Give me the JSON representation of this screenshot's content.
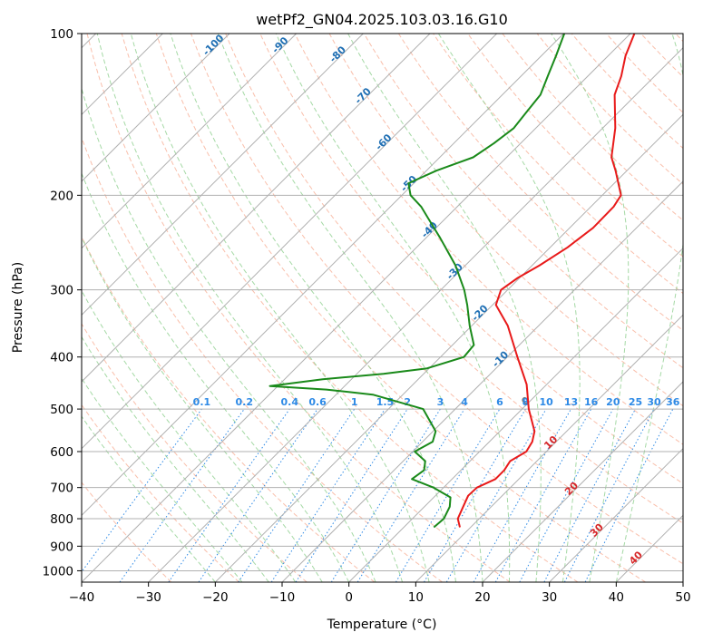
{
  "chart_data": {
    "type": "line",
    "subtype": "skew-T log-P diagram",
    "title": "wetPf2_GN04.2025.103.03.16.G10",
    "xlabel": "Temperature (°C)",
    "ylabel": "Pressure (hPa)",
    "xlim": [
      -40,
      50
    ],
    "ylim": [
      1050,
      100
    ],
    "y_scale": "log",
    "grid": true,
    "x_ticks": [
      -40,
      -30,
      -20,
      -10,
      0,
      10,
      20,
      30,
      40,
      50
    ],
    "y_ticks": [
      100,
      200,
      300,
      400,
      500,
      600,
      700,
      800,
      900,
      1000
    ],
    "isotherm_labels": [
      "-100",
      "-90",
      "-80",
      "-70",
      "-60",
      "-50",
      "-40",
      "-30",
      "-20",
      "-10",
      "0",
      "10",
      "20",
      "30",
      "40"
    ],
    "mixing_ratio_labels": [
      "0.1",
      "0.2",
      "0.4",
      "0.6",
      "1",
      "1.5",
      "2",
      "3",
      "4",
      "6",
      "8",
      "10",
      "13",
      "16",
      "20",
      "25",
      "30",
      "36"
    ],
    "series": [
      {
        "color": "#e81a1a",
        "points": [
          {
            "p": 830,
            "t": 8.4
          },
          {
            "p": 800,
            "t": 6.8
          },
          {
            "p": 760,
            "t": 5.8
          },
          {
            "p": 725,
            "t": 4.9
          },
          {
            "p": 700,
            "t": 5.0
          },
          {
            "p": 675,
            "t": 6.5
          },
          {
            "p": 650,
            "t": 6.5
          },
          {
            "p": 625,
            "t": 6.0
          },
          {
            "p": 600,
            "t": 7.0
          },
          {
            "p": 575,
            "t": 6.4
          },
          {
            "p": 550,
            "t": 5.2
          },
          {
            "p": 500,
            "t": 1.0
          },
          {
            "p": 450,
            "t": -3.0
          },
          {
            "p": 400,
            "t": -8.5
          },
          {
            "p": 350,
            "t": -14.6
          },
          {
            "p": 320,
            "t": -19.5
          },
          {
            "p": 300,
            "t": -21.0
          },
          {
            "p": 285,
            "t": -20.3
          },
          {
            "p": 270,
            "t": -18.9
          },
          {
            "p": 250,
            "t": -17.4
          },
          {
            "p": 230,
            "t": -16.5
          },
          {
            "p": 210,
            "t": -16.6
          },
          {
            "p": 200,
            "t": -17.2
          },
          {
            "p": 180,
            "t": -21.7
          },
          {
            "p": 170,
            "t": -24.3
          },
          {
            "p": 150,
            "t": -28.1
          },
          {
            "p": 130,
            "t": -33.2
          },
          {
            "p": 120,
            "t": -35.0
          },
          {
            "p": 110,
            "t": -37.4
          },
          {
            "p": 100,
            "t": -39.4
          }
        ]
      },
      {
        "color": "#1a8a1a",
        "points": [
          {
            "p": 830,
            "t": 4.5
          },
          {
            "p": 800,
            "t": 4.7
          },
          {
            "p": 760,
            "t": 3.8
          },
          {
            "p": 730,
            "t": 2.5
          },
          {
            "p": 700,
            "t": -1.5
          },
          {
            "p": 675,
            "t": -6.0
          },
          {
            "p": 650,
            "t": -5.5
          },
          {
            "p": 625,
            "t": -6.7
          },
          {
            "p": 600,
            "t": -9.7
          },
          {
            "p": 575,
            "t": -8.5
          },
          {
            "p": 550,
            "t": -9.6
          },
          {
            "p": 500,
            "t": -14.8
          },
          {
            "p": 470,
            "t": -24.5
          },
          {
            "p": 460,
            "t": -32.2
          },
          {
            "p": 453,
            "t": -41.2
          },
          {
            "p": 440,
            "t": -34.3
          },
          {
            "p": 430,
            "t": -26.0
          },
          {
            "p": 420,
            "t": -20.3
          },
          {
            "p": 400,
            "t": -16.5
          },
          {
            "p": 380,
            "t": -16.8
          },
          {
            "p": 350,
            "t": -20.3
          },
          {
            "p": 320,
            "t": -23.8
          },
          {
            "p": 300,
            "t": -26.5
          },
          {
            "p": 270,
            "t": -31.5
          },
          {
            "p": 240,
            "t": -37.9
          },
          {
            "p": 220,
            "t": -42.8
          },
          {
            "p": 210,
            "t": -45.4
          },
          {
            "p": 200,
            "t": -48.7
          },
          {
            "p": 190,
            "t": -50.8
          },
          {
            "p": 180,
            "t": -48.5
          },
          {
            "p": 170,
            "t": -45.0
          },
          {
            "p": 160,
            "t": -44.0
          },
          {
            "p": 150,
            "t": -43.3
          },
          {
            "p": 140,
            "t": -43.8
          },
          {
            "p": 130,
            "t": -44.3
          },
          {
            "p": 120,
            "t": -46.0
          },
          {
            "p": 110,
            "t": -47.8
          },
          {
            "p": 100,
            "t": -49.9
          }
        ]
      }
    ]
  }
}
